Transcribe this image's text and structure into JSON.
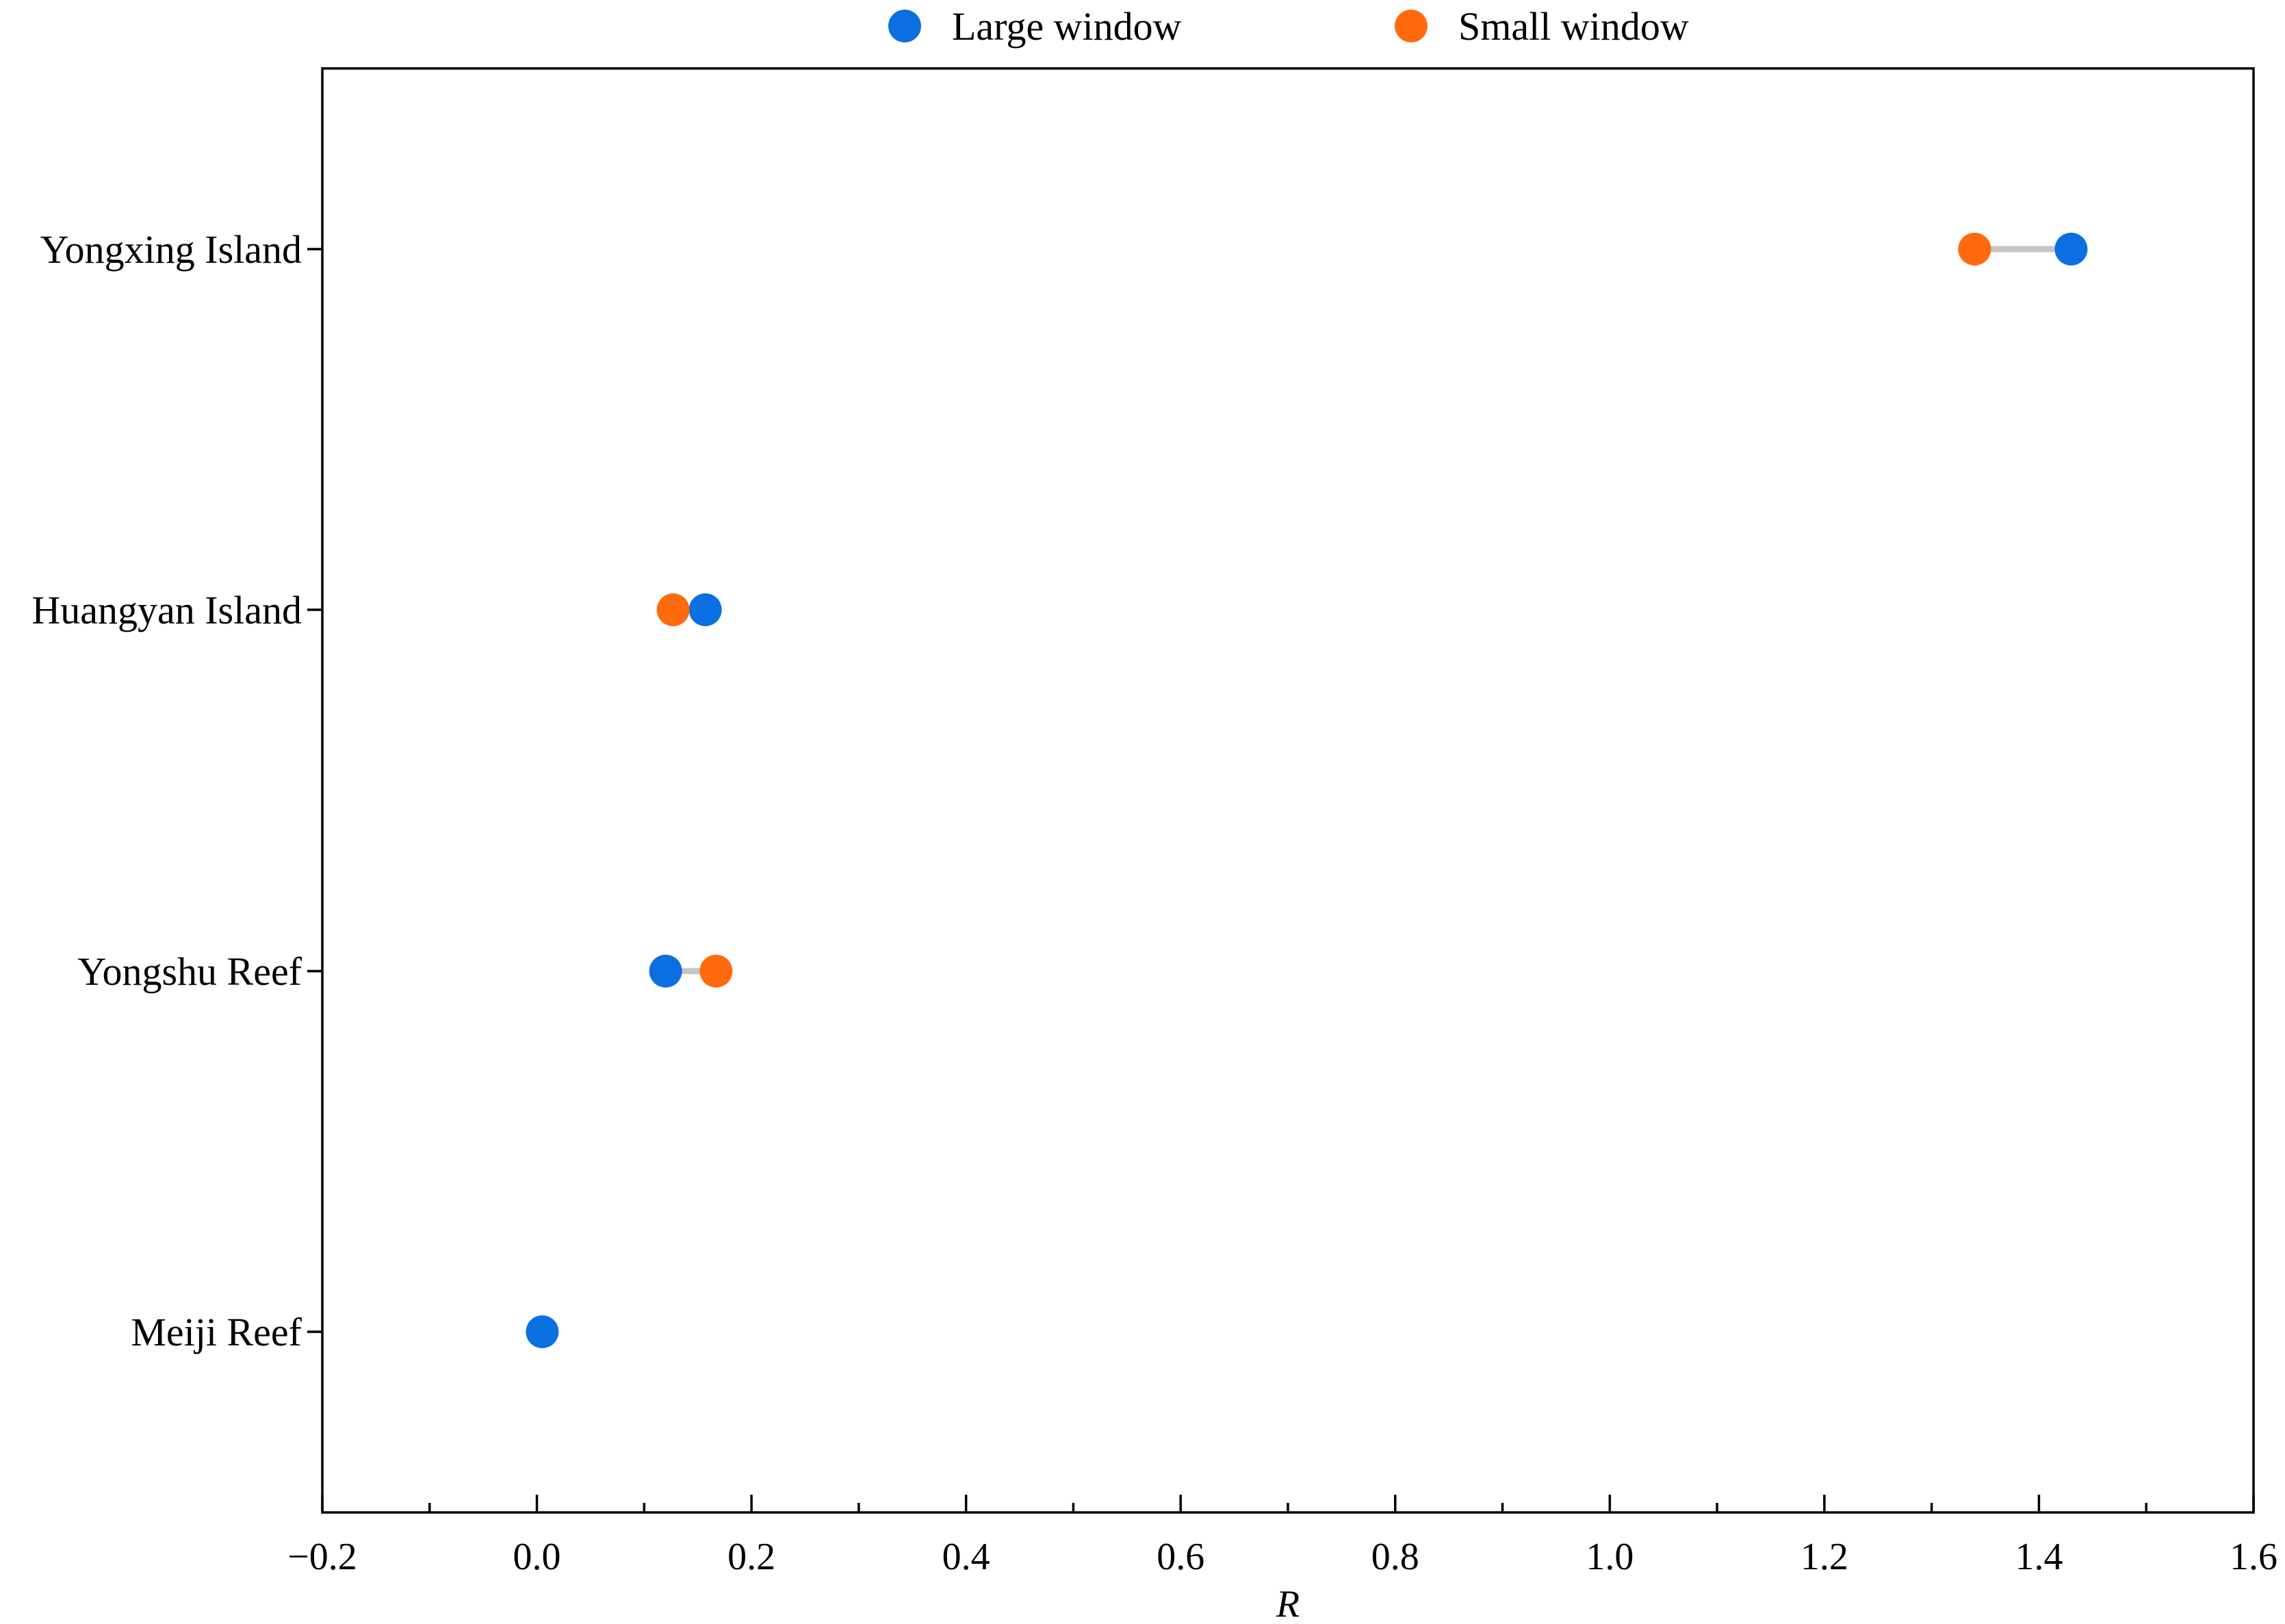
{
  "chart_data": {
    "type": "scatter",
    "subtype": "dumbbell",
    "xlabel": "R",
    "xlim": [
      -0.2,
      1.6
    ],
    "xticks": [
      "−0.2",
      "0.0",
      "0.2",
      "0.4",
      "0.6",
      "0.8",
      "1.0",
      "1.2",
      "1.4",
      "1.6"
    ],
    "xtick_values": [
      -0.2,
      0.0,
      0.2,
      0.4,
      0.6,
      0.8,
      1.0,
      1.2,
      1.4,
      1.6
    ],
    "minor_tick_step": 0.1,
    "categories": [
      "Yongxing Island",
      "Huangyan Island",
      "Yongshu Reef",
      "Meiji Reef"
    ],
    "series": [
      {
        "name": "Large window",
        "color": "#0a6fe0",
        "values": [
          1.43,
          0.157,
          0.12,
          0.005
        ]
      },
      {
        "name": "Small window",
        "color": "#ff6a0f",
        "values": [
          1.34,
          0.127,
          0.167,
          null
        ]
      }
    ],
    "connector_color": "#c4c4c4",
    "legend_position": "top-center",
    "grid": false
  }
}
